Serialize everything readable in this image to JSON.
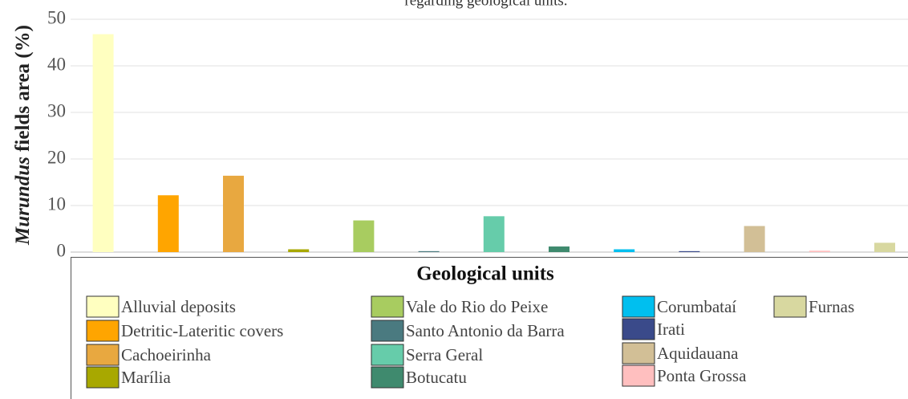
{
  "chart_data": {
    "type": "bar",
    "title": "regarding geological units.",
    "ylabel_italic": "Murundus",
    "ylabel": "fields area (%)",
    "legend_title": "Geological units",
    "categories": [
      "Alluvial deposits",
      "Detritic-Lateritic covers",
      "Cachoeirinha",
      "Marília",
      "Vale do Rio do Peixe",
      "Santo Antonio da Barra",
      "Serra Geral",
      "Botucatu",
      "Corumbataí",
      "Irati",
      "Aquidauana",
      "Ponta Grossa",
      "Furnas"
    ],
    "values": [
      46.8,
      12.2,
      16.4,
      0.6,
      6.8,
      0.2,
      7.7,
      1.2,
      0.6,
      0.2,
      5.6,
      0.3,
      2.0
    ],
    "colors": [
      "#ffffc0",
      "#ffa500",
      "#e8a840",
      "#a8a800",
      "#a8cc60",
      "#4a7a80",
      "#66ccaa",
      "#3f8a6e",
      "#00bfef",
      "#3a4a8a",
      "#d2bf96",
      "#ffbfbf",
      "#d8d8a0"
    ],
    "ylim": [
      0,
      50
    ],
    "yticks": [
      0,
      10,
      20,
      30,
      40,
      50
    ],
    "grid": true
  }
}
